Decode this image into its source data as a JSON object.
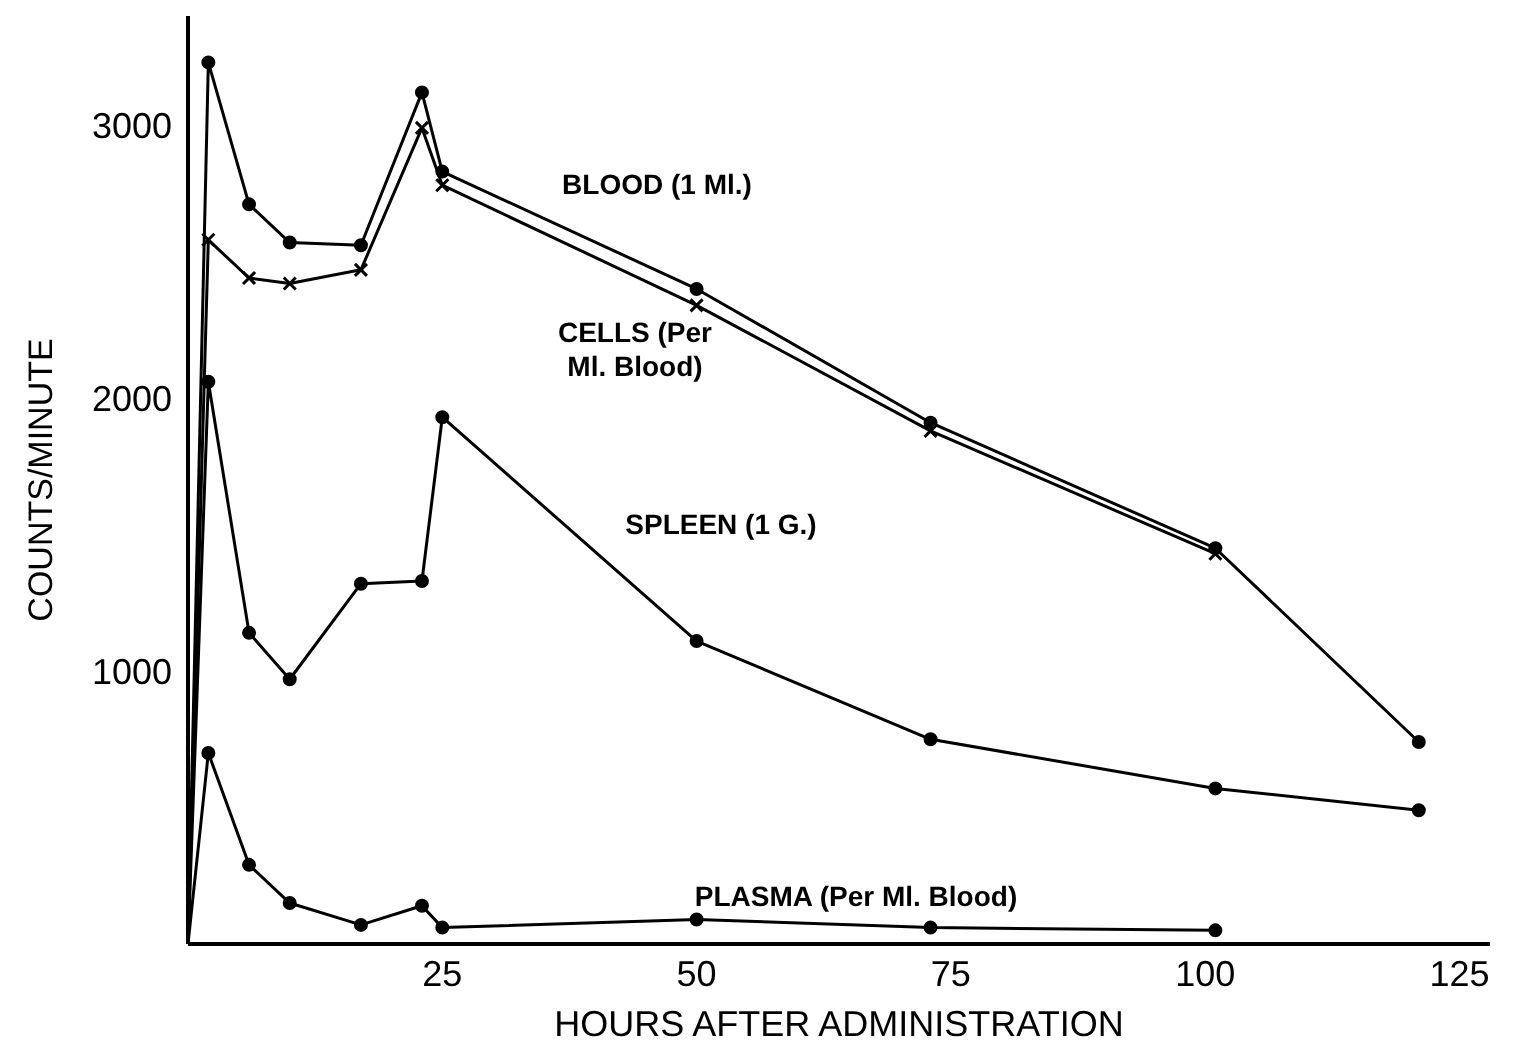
{
  "chart_data": {
    "type": "line",
    "xlabel": "HOURS AFTER ADMINISTRATION",
    "ylabel": "COUNTS/MINUTE",
    "x": [
      0,
      2,
      6,
      10,
      17,
      23,
      25,
      50,
      73,
      101,
      121
    ],
    "series": [
      {
        "name": "BLOOD (1 Ml.)",
        "color": "#000000",
        "marker": "circle",
        "values": [
          0,
          3230,
          2710,
          2570,
          2560,
          3120,
          2830,
          2400,
          1910,
          1450,
          740
        ]
      },
      {
        "name": "CELLS (Per Ml. Blood)",
        "color": "#000000",
        "marker": "cross",
        "x": [
          0,
          2,
          6,
          10,
          17,
          23,
          25,
          50,
          73,
          101
        ],
        "values": [
          0,
          2580,
          2440,
          2420,
          2470,
          2990,
          2780,
          2340,
          1880,
          1430
        ]
      },
      {
        "name": "SPLEEN (1 G.)",
        "color": "#000000",
        "marker": "circle",
        "values": [
          0,
          2060,
          1140,
          970,
          1320,
          1330,
          1930,
          1110,
          750,
          570,
          490
        ]
      },
      {
        "name": "PLASMA (Per Ml. Blood)",
        "color": "#000000",
        "marker": "circle",
        "x": [
          0,
          2,
          6,
          10,
          17,
          23,
          25,
          50,
          73,
          101
        ],
        "values": [
          0,
          700,
          290,
          150,
          70,
          140,
          60,
          90,
          60,
          50
        ]
      }
    ],
    "xlim": [
      0,
      128
    ],
    "ylim": [
      0,
      3400
    ],
    "xticks": [
      25,
      50,
      75,
      100,
      125
    ],
    "yticks": [
      1000,
      2000,
      3000
    ],
    "grid": false,
    "legend": false
  }
}
